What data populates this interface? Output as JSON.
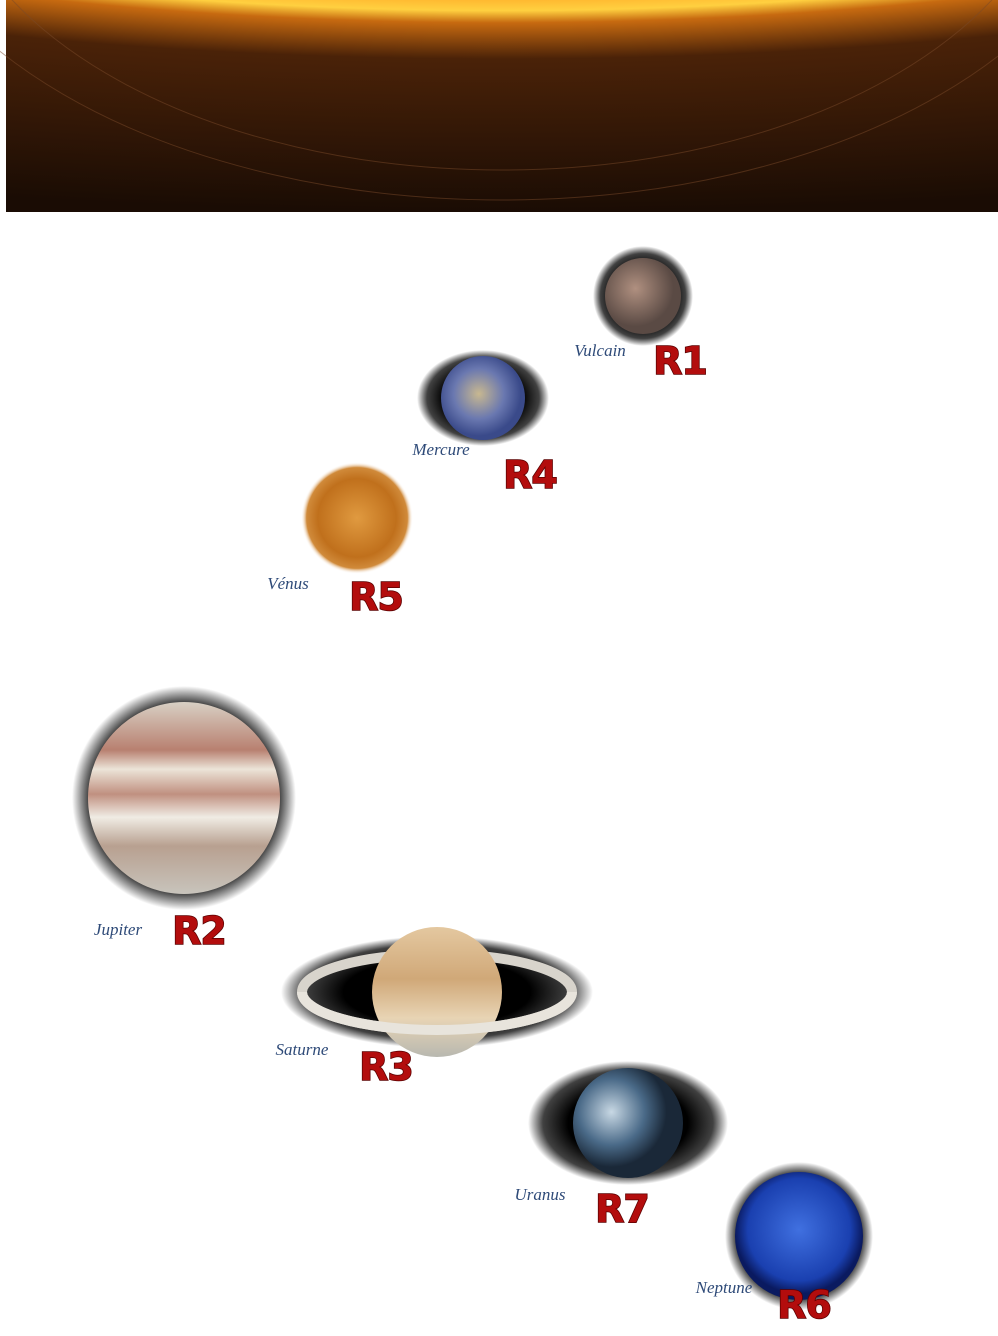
{
  "planets": [
    {
      "name": "Vulcain",
      "rank": "R1"
    },
    {
      "name": "Mercure",
      "rank": "R4"
    },
    {
      "name": "Vénus",
      "rank": "R5"
    },
    {
      "name": "Jupiter",
      "rank": "R2"
    },
    {
      "name": "Saturne",
      "rank": "R3"
    },
    {
      "name": "Uranus",
      "rank": "R7"
    },
    {
      "name": "Neptune",
      "rank": "R6"
    }
  ]
}
